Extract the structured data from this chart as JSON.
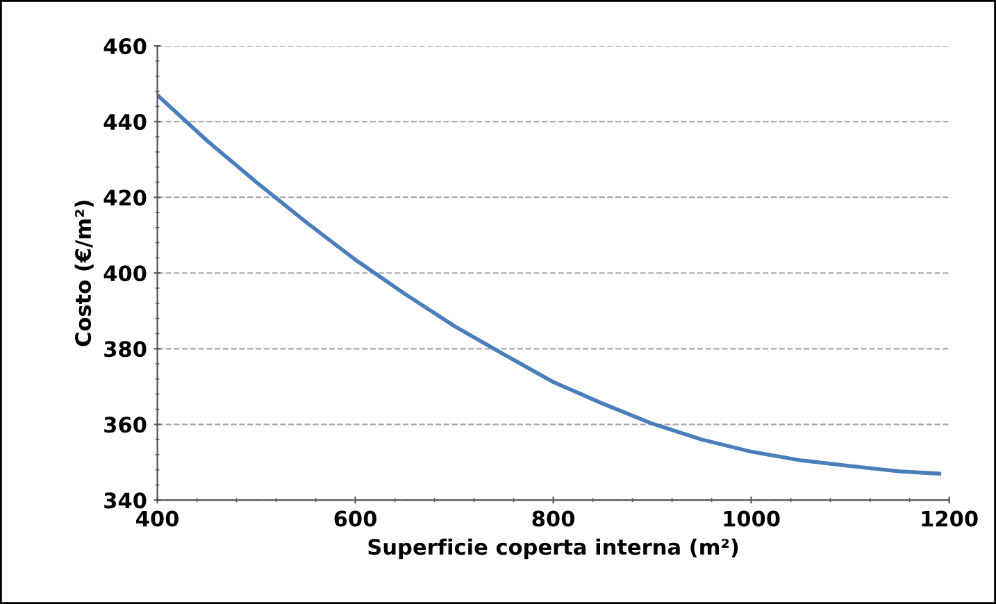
{
  "chart_data": {
    "type": "line",
    "xlabel": "Superficie coperta interna (m²)",
    "ylabel": "Costo (€/m²)",
    "x": [
      400,
      450,
      500,
      550,
      600,
      650,
      700,
      750,
      800,
      850,
      900,
      950,
      1000,
      1050,
      1100,
      1150,
      1190
    ],
    "series": [
      {
        "color": "#4a7ebb",
        "values": [
          447,
          435,
          424,
          413.5,
          403.5,
          394.5,
          386,
          378.5,
          371.2,
          365.5,
          360.2,
          356,
          352.8,
          350.5,
          349,
          347.6,
          347
        ]
      }
    ],
    "xlim": [
      400,
      1200
    ],
    "xticks": [
      400,
      600,
      800,
      1000,
      1200
    ],
    "ylim": [
      340,
      460
    ],
    "yticks": [
      340,
      360,
      380,
      400,
      420,
      440,
      460
    ],
    "grid": "y",
    "legend": false,
    "marker": "none",
    "line_style": "solid"
  }
}
